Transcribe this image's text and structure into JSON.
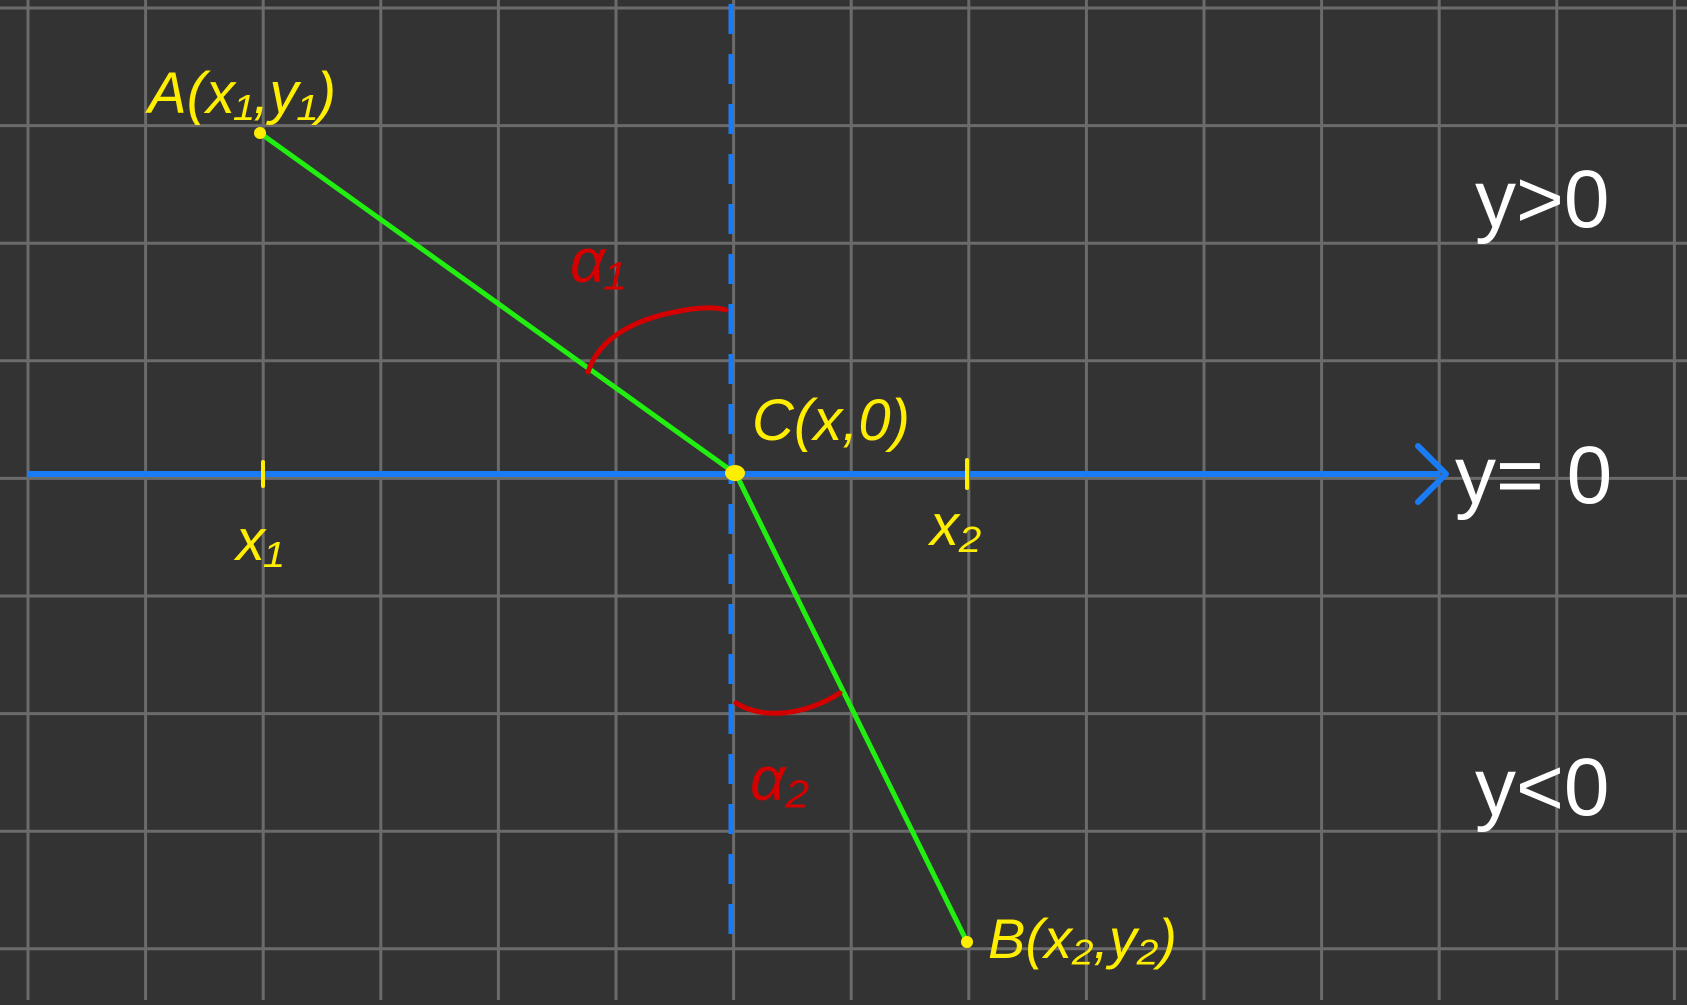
{
  "colors": {
    "background": "#333333",
    "grid": "#6b6b6b",
    "axis": "#1a7cf5",
    "segment": "#22ee11",
    "angle": "#d40000",
    "point_label": "#ffee00",
    "region_label": "#ffffff"
  },
  "points": {
    "A": {
      "label": "A(x₁,y₁)"
    },
    "B": {
      "label": "B(x₂,y₂)"
    },
    "C": {
      "label": "C(x,0)"
    }
  },
  "ticks": {
    "x1": "x₁",
    "x2": "x₂"
  },
  "angles": {
    "alpha1": "α₁",
    "alpha2": "α₂"
  },
  "regions": {
    "upper": "y>0",
    "axis": "y= 0",
    "lower": "y<0"
  }
}
